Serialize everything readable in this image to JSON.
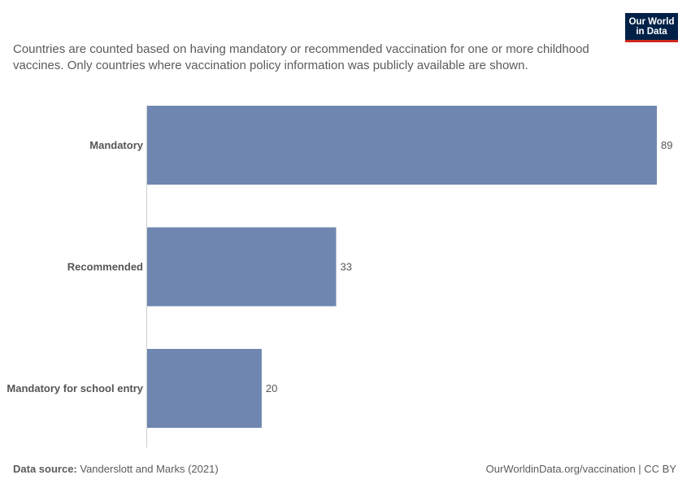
{
  "header": {
    "subtitle": "Countries are counted based on having mandatory or recommended vaccination for one or more childhood vaccines. Only countries where vaccination policy information was publicly available are shown."
  },
  "logo": {
    "line1": "Our World",
    "line2": "in Data"
  },
  "chart_data": {
    "type": "bar",
    "orientation": "horizontal",
    "categories": [
      "Mandatory",
      "Recommended",
      "Mandatory for school entry"
    ],
    "values": [
      89,
      33,
      20
    ],
    "xlim": [
      0,
      89
    ],
    "grid": false,
    "bar_color": "#6f87b0"
  },
  "footer": {
    "source_label": "Data source:",
    "source_value": "Vanderslott and Marks (2021)",
    "credit": "OurWorldinData.org/vaccination | CC BY"
  }
}
